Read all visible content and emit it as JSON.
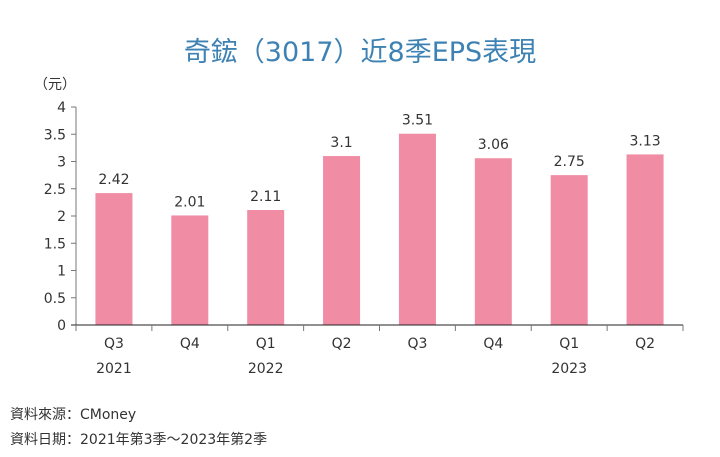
{
  "title": "奇鋐（3017）近8季EPS表現",
  "unit_label": "（元）",
  "source": {
    "line1": "資料來源：CMoney",
    "line2": "資料日期：2021年第3季～2023年第2季"
  },
  "colors": {
    "bar": "#F08CA4",
    "title": "#3E82B4",
    "axis": "#333333"
  },
  "chart_data": {
    "type": "bar",
    "title": "奇鋐（3017）近8季EPS表現",
    "ylabel": "（元）",
    "xlabel": "",
    "categories": [
      "Q3 2021",
      "Q4 2021",
      "Q1 2022",
      "Q2 2022",
      "Q3 2022",
      "Q4 2022",
      "Q1 2023",
      "Q2 2023"
    ],
    "x_tick_labels": [
      {
        "quarter": "Q3",
        "year": "2021"
      },
      {
        "quarter": "Q4",
        "year": ""
      },
      {
        "quarter": "Q1",
        "year": "2022"
      },
      {
        "quarter": "Q2",
        "year": ""
      },
      {
        "quarter": "Q3",
        "year": ""
      },
      {
        "quarter": "Q4",
        "year": ""
      },
      {
        "quarter": "Q1",
        "year": "2023"
      },
      {
        "quarter": "Q2",
        "year": ""
      }
    ],
    "values": [
      2.42,
      2.01,
      2.11,
      3.1,
      3.51,
      3.06,
      2.75,
      3.13
    ],
    "data_labels": [
      "2.42",
      "2.01",
      "2.11",
      "3.1",
      "3.51",
      "3.06",
      "2.75",
      "3.13"
    ],
    "ylim": [
      0,
      4
    ],
    "yticks": [
      "0",
      "0.5",
      "1",
      "1.5",
      "2",
      "2.5",
      "3",
      "3.5",
      "4"
    ],
    "grid": false,
    "legend": null
  }
}
